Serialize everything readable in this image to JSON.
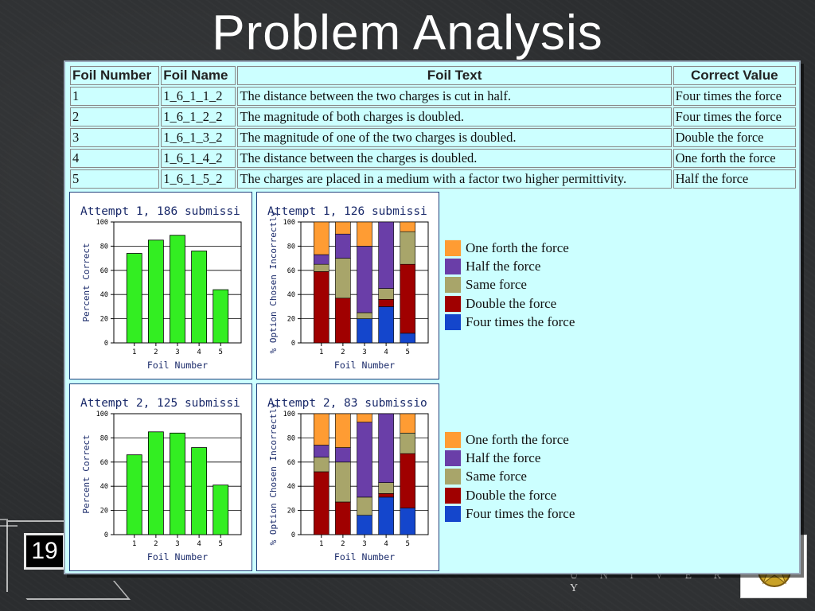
{
  "slide": {
    "title": "Problem Analysis",
    "page_number": "19",
    "footer_text": "U N I V E R S I T Y"
  },
  "colors": {
    "green": "#33ee22",
    "orange": "#ff9c33",
    "purple": "#6a3ea8",
    "olive": "#a8a56a",
    "darkred": "#a00000",
    "blue": "#1446cc",
    "panel_bg": "#ccffff",
    "axis_text": "#1a2a6a"
  },
  "table": {
    "headers": [
      "Foil Number",
      "Foil Name",
      "Foil Text",
      "Correct Value"
    ],
    "rows": [
      [
        "1",
        "1_6_1_1_2",
        "The distance between the two charges is cut in half.",
        "Four times the force"
      ],
      [
        "2",
        "1_6_1_2_2",
        "The magnitude of both charges is doubled.",
        "Four times the force"
      ],
      [
        "3",
        "1_6_1_3_2",
        "The magnitude of one of the two charges is doubled.",
        "Double the force"
      ],
      [
        "4",
        "1_6_1_4_2",
        "The distance between the charges is doubled.",
        "One forth the force"
      ],
      [
        "5",
        "1_6_1_5_2",
        "The charges are placed in a medium with a factor two higher permittivity.",
        "Half the force"
      ]
    ]
  },
  "legend": {
    "items": [
      {
        "label": "One forth the force",
        "color": "#ff9c33"
      },
      {
        "label": "Half the force",
        "color": "#6a3ea8"
      },
      {
        "label": "Same force",
        "color": "#a8a56a"
      },
      {
        "label": "Double the force",
        "color": "#a00000"
      },
      {
        "label": "Four times the force",
        "color": "#1446cc"
      }
    ]
  },
  "chart_data": [
    {
      "type": "bar",
      "title": "Attempt 1, 186 submissi",
      "xlabel": "Foil Number",
      "ylabel": "Percent Correct",
      "categories": [
        "1",
        "2",
        "3",
        "4",
        "5"
      ],
      "values": [
        74,
        85,
        89,
        76,
        44
      ],
      "ylim": [
        0,
        100
      ],
      "yticks": [
        0,
        20,
        40,
        60,
        80,
        100
      ],
      "grid": true
    },
    {
      "type": "bar",
      "stacked": true,
      "title": "Attempt 1, 126 submissi",
      "xlabel": "Foil Number",
      "ylabel": "% Option Chosen Incorrectly",
      "categories": [
        "1",
        "2",
        "3",
        "4",
        "5"
      ],
      "ylim": [
        0,
        100
      ],
      "yticks": [
        0,
        20,
        40,
        60,
        80,
        100
      ],
      "series": [
        {
          "name": "Four times the force",
          "values": [
            0,
            0,
            20,
            30,
            8
          ]
        },
        {
          "name": "Double the force",
          "values": [
            59,
            37,
            0,
            6,
            57
          ]
        },
        {
          "name": "Same force",
          "values": [
            6,
            33,
            5,
            9,
            27
          ]
        },
        {
          "name": "Half the force",
          "values": [
            8,
            20,
            55,
            55,
            0
          ]
        },
        {
          "name": "One forth the force",
          "values": [
            27,
            10,
            20,
            0,
            8
          ]
        }
      ]
    },
    {
      "type": "bar",
      "title": "Attempt 2, 125 submissi",
      "xlabel": "Foil Number",
      "ylabel": "Percent Correct",
      "categories": [
        "1",
        "2",
        "3",
        "4",
        "5"
      ],
      "values": [
        66,
        85,
        84,
        72,
        41
      ],
      "ylim": [
        0,
        100
      ],
      "yticks": [
        0,
        20,
        40,
        60,
        80,
        100
      ],
      "grid": true
    },
    {
      "type": "bar",
      "stacked": true,
      "title": "Attempt 2, 83 submissio",
      "xlabel": "Foil Number",
      "ylabel": "% Option Chosen Incorrectly",
      "categories": [
        "1",
        "2",
        "3",
        "4",
        "5"
      ],
      "ylim": [
        0,
        100
      ],
      "yticks": [
        0,
        20,
        40,
        60,
        80,
        100
      ],
      "series": [
        {
          "name": "Four times the force",
          "values": [
            0,
            0,
            16,
            31,
            22
          ]
        },
        {
          "name": "Double the force",
          "values": [
            52,
            27,
            0,
            3,
            45
          ]
        },
        {
          "name": "Same force",
          "values": [
            12,
            33,
            15,
            9,
            17
          ]
        },
        {
          "name": "Half the force",
          "values": [
            10,
            12,
            62,
            57,
            0
          ]
        },
        {
          "name": "One forth the force",
          "values": [
            26,
            28,
            7,
            0,
            16
          ]
        }
      ]
    }
  ]
}
